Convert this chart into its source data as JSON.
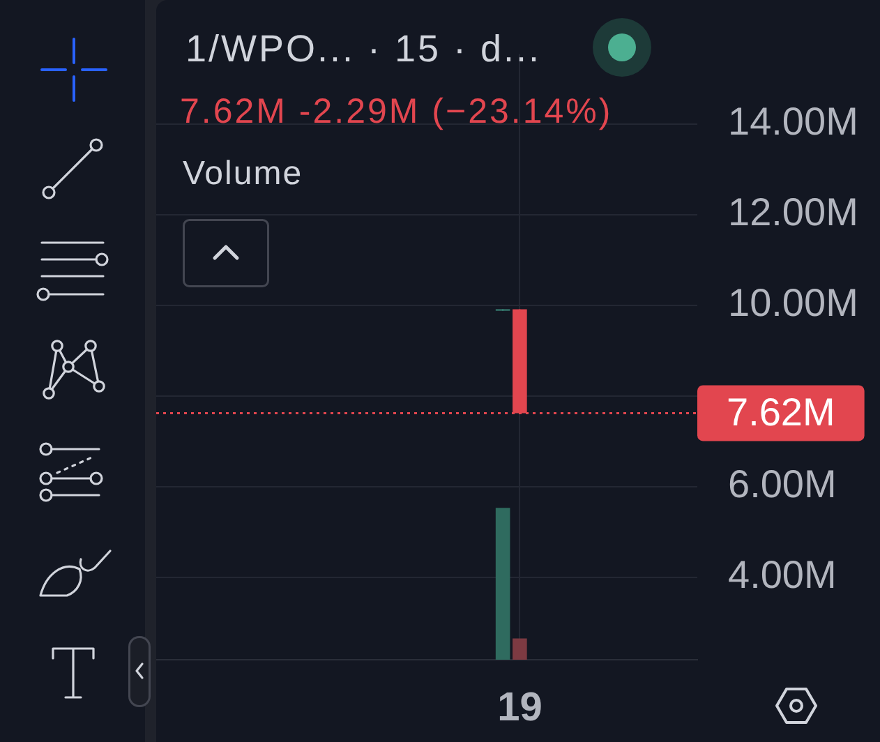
{
  "chart_data": {
    "type": "candlestick",
    "title": "1/WPO... · 15 · d...",
    "subtitle": "7.62M -2.29M (−23.14%)",
    "annotations": [
      "Volume"
    ],
    "categories": [
      null,
      null,
      null,
      null,
      null,
      null,
      null,
      null,
      null,
      null,
      null,
      null,
      null,
      null,
      null,
      null,
      null,
      null,
      null,
      null,
      null,
      "19",
      null,
      null,
      null,
      null,
      null,
      null,
      null,
      null,
      null,
      null
    ],
    "series": [
      {
        "ohlc": [
          null,
          null,
          null,
          null,
          null,
          null,
          null,
          null,
          null,
          null,
          null,
          null,
          null,
          null,
          null,
          null,
          null,
          null,
          null,
          null,
          [
            9.88,
            9.91,
            9.88,
            9.91
          ],
          [
            9.91,
            9.91,
            7.62,
            7.62
          ],
          null,
          null,
          null,
          null,
          null,
          null,
          null,
          null,
          null,
          null
        ],
        "colors": [
          null,
          null,
          null,
          null,
          null,
          null,
          null,
          null,
          null,
          null,
          null,
          null,
          null,
          null,
          null,
          null,
          null,
          null,
          null,
          null,
          "#3d8f7f",
          "#e2464f",
          null,
          null,
          null,
          null,
          null,
          null,
          null,
          null,
          null,
          null
        ]
      },
      {
        "type": "bar",
        "values": [
          null,
          null,
          null,
          null,
          null,
          null,
          null,
          null,
          null,
          null,
          null,
          null,
          null,
          null,
          null,
          null,
          null,
          null,
          null,
          null,
          5.53,
          2.65,
          null,
          null,
          null,
          null,
          null,
          null,
          null,
          null,
          null,
          null
        ],
        "colors": [
          null,
          null,
          null,
          null,
          null,
          null,
          null,
          null,
          null,
          null,
          null,
          null,
          null,
          null,
          null,
          null,
          null,
          null,
          null,
          null,
          "#2f6b5f",
          "#7d3a42",
          null,
          null,
          null,
          null,
          null,
          null,
          null,
          null,
          null,
          null
        ]
      }
    ],
    "ylim": [
      2.18,
      15.54
    ],
    "yticks": [
      {
        "value": 4,
        "label": "4.00M"
      },
      {
        "value": 6,
        "label": "6.00M"
      },
      {
        "value": 8,
        "label": null
      },
      {
        "value": 10,
        "label": "10.00M"
      },
      {
        "value": 12,
        "label": "12.00M"
      },
      {
        "value": 14,
        "label": "14.00M"
      }
    ],
    "ref_lines": [
      {
        "axis": "y",
        "value": 7.62,
        "label": "7.62M",
        "color": "#e2464f",
        "line_style": "dotted"
      }
    ],
    "grid": true
  }
}
